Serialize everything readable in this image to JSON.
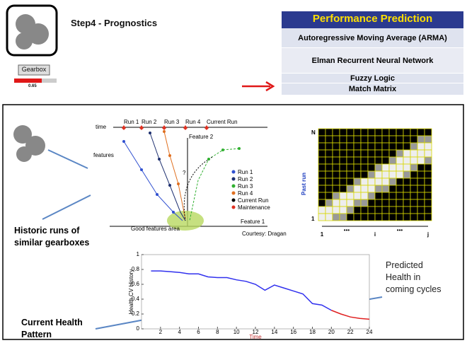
{
  "header": {
    "step": "Step4 - Prognostics",
    "device_button": "Gearbox",
    "health_value": "0.65"
  },
  "methods": {
    "title": "Performance Prediction",
    "items": [
      "Autoregressive Moving Average (ARMA)",
      "Elman Recurrent Neural Network",
      "Fuzzy Logic",
      "Match Matrix"
    ]
  },
  "features_plot": {
    "time_label": "time",
    "features_label": "features",
    "time_runs": [
      "Run 1",
      "Run 2",
      "Run 3",
      "Run 4",
      "Current Run"
    ],
    "feature2": "Feature 2",
    "feature1": "Feature 1",
    "question": "?",
    "legend": [
      "Run 1",
      "Run 2",
      "Run 3",
      "Run 4",
      "Current Run",
      "Maintenance"
    ],
    "area_label": "Good features area",
    "credit": "Courtesy: Dragan"
  },
  "match_matrix": {
    "row_top": "N",
    "row_bottom": "1",
    "axis_label": "Past run",
    "col_labels": [
      "1",
      "i",
      "j"
    ],
    "ellipsis": "•••"
  },
  "annotations": {
    "historic": "Historic runs of similar gearboxes",
    "current": "Current Health Pattern",
    "predicted": "Predicted Health in coming cycles"
  },
  "chart_data": {
    "type": "line",
    "x_label": "Time",
    "y_label": "Health CV History",
    "x": [
      1,
      2,
      3,
      4,
      5,
      6,
      7,
      8,
      9,
      10,
      11,
      12,
      13,
      14,
      15,
      16,
      17,
      18,
      19,
      20,
      21,
      22,
      23,
      24
    ],
    "series": [
      {
        "color": "#3030ee",
        "values": [
          0.78,
          0.78,
          0.77,
          0.76,
          0.74,
          0.74,
          0.7,
          0.69,
          0.69,
          0.66,
          0.64,
          0.6,
          0.52,
          0.59,
          0.55,
          0.51,
          0.47,
          0.34,
          0.32,
          0.25,
          null,
          null,
          null,
          null
        ]
      },
      {
        "color": "#e02020",
        "values": [
          null,
          null,
          null,
          null,
          null,
          null,
          null,
          null,
          null,
          null,
          null,
          null,
          null,
          null,
          null,
          null,
          null,
          null,
          null,
          0.25,
          0.2,
          0.16,
          0.14,
          0.13
        ]
      }
    ],
    "xlim": [
      0,
      24
    ],
    "ylim": [
      0,
      1
    ],
    "xticks": [
      2,
      4,
      6,
      8,
      10,
      12,
      14,
      16,
      18,
      20,
      22,
      24
    ],
    "yticks": [
      0,
      0.2,
      0.4,
      0.6,
      0.8,
      1
    ]
  }
}
